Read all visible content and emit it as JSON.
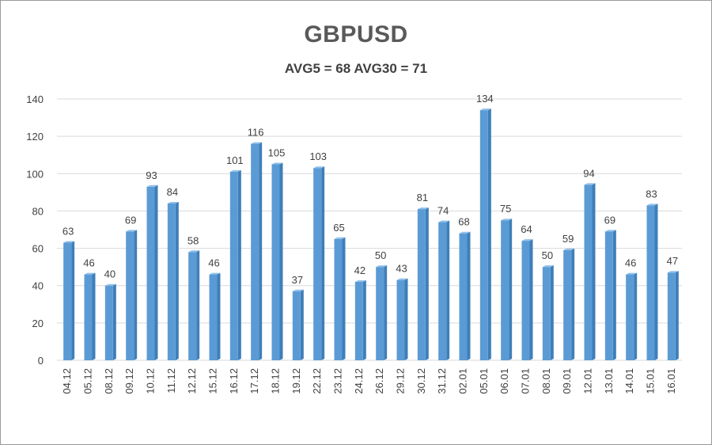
{
  "chart_data": {
    "type": "bar",
    "title": "GBPUSD",
    "subtitle": "AVG5 = 68 AVG30 = 71",
    "xlabel": "",
    "ylabel": "",
    "ylim": [
      0,
      140
    ],
    "yticks": [
      0,
      20,
      40,
      60,
      80,
      100,
      120,
      140
    ],
    "grid": true,
    "legend": "none",
    "categories": [
      "04.12",
      "05.12",
      "08.12",
      "09.12",
      "10.12",
      "11.12",
      "12.12",
      "15.12",
      "16.12",
      "17.12",
      "18.12",
      "19.12",
      "22.12",
      "23.12",
      "24.12",
      "26.12",
      "29.12",
      "30.12",
      "31.12",
      "02.01",
      "05.01",
      "06.01",
      "07.01",
      "08.01",
      "09.01",
      "12.01",
      "13.01",
      "14.01",
      "15.01",
      "16.01"
    ],
    "values": [
      63,
      46,
      40,
      69,
      93,
      84,
      58,
      46,
      101,
      116,
      105,
      37,
      103,
      65,
      42,
      50,
      43,
      81,
      74,
      68,
      134,
      75,
      64,
      50,
      59,
      94,
      69,
      46,
      83,
      47
    ],
    "colors": {
      "bar": "#5b9bd5",
      "bar_top": "#8fc0ec",
      "bar_side": "#3f7fb9",
      "grid": "#d9d9d9",
      "text": "#404040"
    }
  }
}
